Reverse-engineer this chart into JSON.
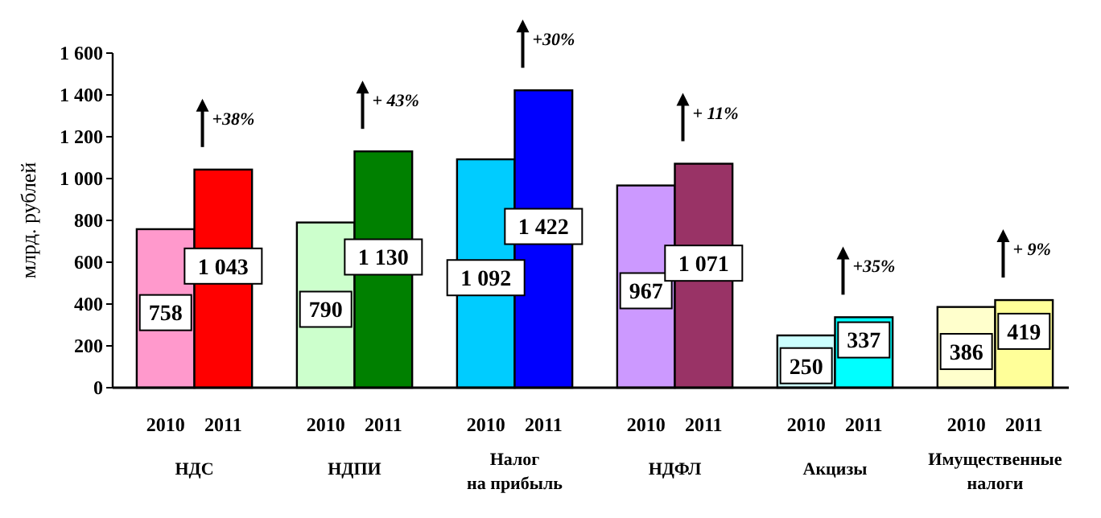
{
  "chart_data": {
    "type": "bar",
    "ylabel": "млрд. рублей",
    "categories": [
      "НДС",
      "НДПИ",
      "Налог на прибыль",
      "НДФЛ",
      "Акцизы",
      "Имущественные налоги"
    ],
    "series": [
      {
        "name": "2010",
        "colors": [
          "#ff99cc",
          "#ccffcc",
          "#00ccff",
          "#cc99ff",
          "#ccffff",
          "#ffffcc"
        ],
        "values": [
          758,
          790,
          1092,
          967,
          250,
          386
        ]
      },
      {
        "name": "2011",
        "colors": [
          "#ff0000",
          "#008000",
          "#0000ff",
          "#993366",
          "#00ffff",
          "#ffff99"
        ],
        "values": [
          1043,
          1130,
          1422,
          1071,
          337,
          419
        ]
      }
    ],
    "ylim": [
      0,
      1600
    ],
    "yticks": [
      0,
      200,
      400,
      600,
      800,
      {
        "value": 1000,
        "label": "1 000"
      },
      {
        "value": 1200,
        "label": "1 200"
      },
      {
        "value": 1400,
        "label": "1 400"
      },
      {
        "value": 1600,
        "label": "1 600"
      }
    ],
    "data_labels": true,
    "grid": false,
    "annotations": [
      {
        "text": "+38%",
        "x": "НДС",
        "y": 1043
      },
      {
        "text": "+ 43%",
        "x": "НДПИ",
        "y": 1130
      },
      {
        "text": "+30%",
        "x": "Налог на прибыль",
        "y": 1422
      },
      {
        "text": "+ 11%",
        "x": "НДФЛ",
        "y": 1071
      },
      {
        "text": "+35%",
        "x": "Акцизы",
        "y": 337
      },
      {
        "text": "+ 9%",
        "x": "Имущественные налоги",
        "y": 419
      }
    ]
  }
}
